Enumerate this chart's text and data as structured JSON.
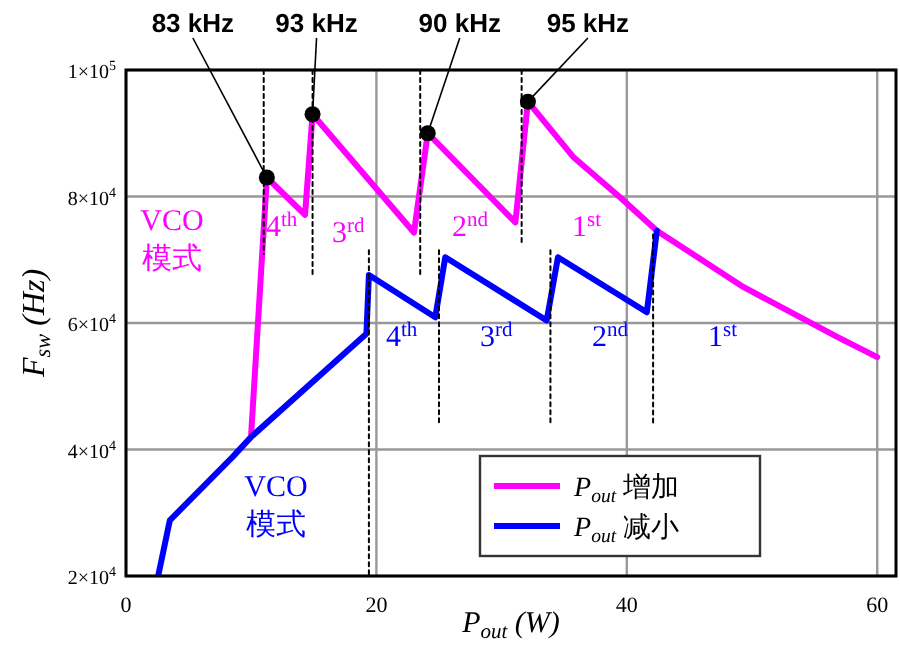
{
  "chart_data": {
    "type": "line",
    "xlabel": "P$_{out}$ (W)",
    "ylabel": "F$_{sw}$ (Hz)",
    "xlim": [
      0,
      61.5
    ],
    "ylim": [
      20000,
      100000
    ],
    "xticks": [
      0,
      20,
      40,
      60
    ],
    "yticks": [
      {
        "value": 20000,
        "label": "2×10$^{4}$"
      },
      {
        "value": 40000,
        "label": "4×10$^{4}$"
      },
      {
        "value": 60000,
        "label": "6×10$^{4}$"
      },
      {
        "value": 80000,
        "label": "8×10$^{4}$"
      },
      {
        "value": 100000,
        "label": "1×10$^{5}$"
      }
    ],
    "grid": true,
    "legend": "bottom right",
    "line_style": "solid",
    "marker": "none",
    "series": [
      {
        "name": "P$_{out}$ 增加",
        "color": "#ff00ff",
        "x": [
          10,
          11.25,
          14.3,
          14.9,
          23.0,
          24.1,
          31.1,
          32.1,
          35.7,
          39.5,
          42.4,
          49.3,
          56.8,
          60
        ],
        "values": [
          42500,
          83000,
          77100,
          93000,
          74300,
          90000,
          75900,
          95000,
          86300,
          79800,
          74600,
          65700,
          57800,
          54600
        ]
      },
      {
        "name": "P$_{out}$ 减小",
        "color": "#0000ff",
        "x": [
          2.6,
          3.5,
          8.5,
          10,
          19.2,
          19.4,
          24.7,
          25.5,
          33.6,
          34.5,
          41.6,
          42.4
        ],
        "values": [
          20300,
          28800,
          38800,
          42000,
          58300,
          67600,
          60900,
          70400,
          60400,
          70400,
          61700,
          74600
        ]
      },
      {
        "color": "#000000",
        "line_style": "dotted",
        "x": [
          11.0,
          11.0,
          null,
          14.9,
          14.9,
          null,
          23.5,
          23.5,
          null,
          31.6,
          31.6,
          null,
          19.4,
          19.4,
          null,
          25.0,
          25.0,
          null,
          33.9,
          33.9,
          null,
          42.1,
          42.1
        ],
        "values": [
          100000,
          70900,
          null,
          100000,
          67700,
          null,
          100000,
          67700,
          null,
          100000,
          72500,
          null,
          71500,
          20000,
          null,
          71500,
          43900,
          null,
          71500,
          43900,
          null,
          74000,
          44000
        ]
      }
    ],
    "annotations": [
      {
        "text": "83 kHz",
        "x": 11.25,
        "y": 83000
      },
      {
        "text": "93 kHz",
        "x": 14.9,
        "y": 93000
      },
      {
        "text": "90 kHz",
        "x": 24.1,
        "y": 90000
      },
      {
        "text": "95 kHz",
        "x": 32.1,
        "y": 95000
      },
      "4$^{th}$",
      "3$^{rd}$",
      "2$^{nd}$",
      "1$^{st}$",
      "4$^{th}$",
      "3$^{rd}$",
      "2$^{nd}$",
      "1$^{st}$",
      "VCO\n模式",
      "VCO\n模式"
    ]
  }
}
